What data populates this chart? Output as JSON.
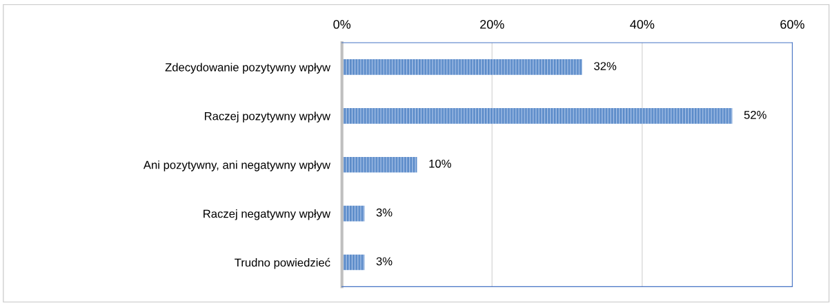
{
  "chart_data": {
    "type": "bar",
    "orientation": "horizontal",
    "categories": [
      "Zdecydowanie pozytywny wpływ",
      "Raczej pozytywny wpływ",
      "Ani pozytywny, ani negatywny wpływ",
      "Raczej negatywny wpływ",
      "Trudno powiedzieć"
    ],
    "values": [
      32,
      52,
      10,
      3,
      3
    ],
    "value_labels": [
      "32%",
      "52%",
      "10%",
      "3%",
      "3%"
    ],
    "color": "#5b8bc9",
    "xlim": [
      0,
      60
    ],
    "xticks": [
      {
        "value": 0,
        "label": "0%"
      },
      {
        "value": 20,
        "label": "20%"
      },
      {
        "value": 40,
        "label": "40%"
      },
      {
        "value": 60,
        "label": "60%"
      }
    ],
    "grid": "x",
    "legend": false
  }
}
